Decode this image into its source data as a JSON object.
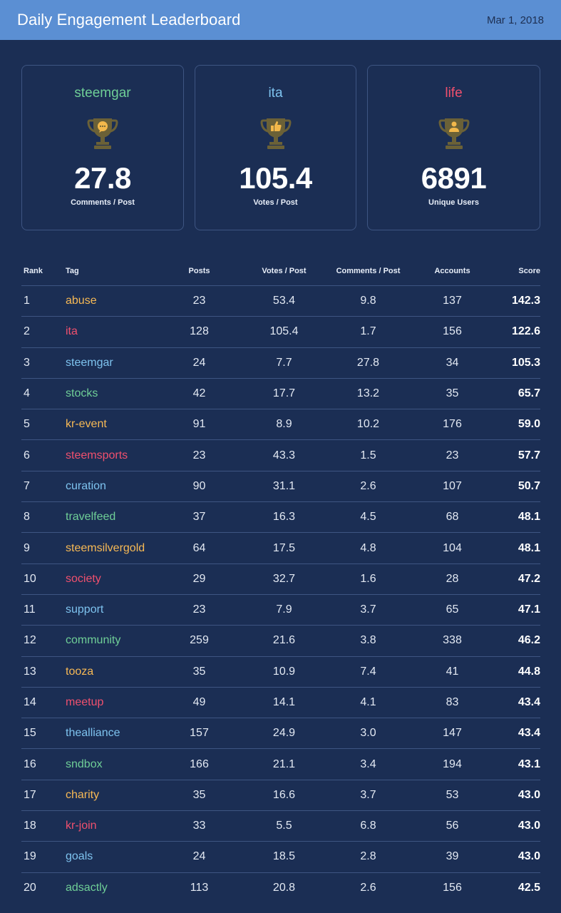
{
  "header": {
    "title": "Daily Engagement Leaderboard",
    "date": "Mar 1, 2018"
  },
  "colors": {
    "orange": "#f7b955",
    "red": "#f0506e",
    "blue": "#7ec3ef",
    "green": "#6fcf97",
    "trophy": "#6b6137",
    "trophy_badge": "#f2b84b"
  },
  "cards": [
    {
      "tag": "steemgar",
      "color": "#6fcf97",
      "icon": "trophy-comment-icon",
      "value": "27.8",
      "label": "Comments / Post"
    },
    {
      "tag": "ita",
      "color": "#7ec3ef",
      "icon": "trophy-thumbs-up-icon",
      "value": "105.4",
      "label": "Votes / Post"
    },
    {
      "tag": "life",
      "color": "#f0506e",
      "icon": "trophy-user-icon",
      "value": "6891",
      "label": "Unique Users"
    }
  ],
  "table": {
    "headers": {
      "rank": "Rank",
      "tag": "Tag",
      "posts": "Posts",
      "votes": "Votes / Post",
      "comments": "Comments / Post",
      "accounts": "Accounts",
      "score": "Score"
    },
    "rows": [
      {
        "rank": "1",
        "tag": "abuse",
        "color": "#f7b955",
        "posts": "23",
        "votes": "53.4",
        "comments": "9.8",
        "accounts": "137",
        "score": "142.3"
      },
      {
        "rank": "2",
        "tag": "ita",
        "color": "#f0506e",
        "posts": "128",
        "votes": "105.4",
        "comments": "1.7",
        "accounts": "156",
        "score": "122.6"
      },
      {
        "rank": "3",
        "tag": "steemgar",
        "color": "#7ec3ef",
        "posts": "24",
        "votes": "7.7",
        "comments": "27.8",
        "accounts": "34",
        "score": "105.3"
      },
      {
        "rank": "4",
        "tag": "stocks",
        "color": "#6fcf97",
        "posts": "42",
        "votes": "17.7",
        "comments": "13.2",
        "accounts": "35",
        "score": "65.7"
      },
      {
        "rank": "5",
        "tag": "kr-event",
        "color": "#f7b955",
        "posts": "91",
        "votes": "8.9",
        "comments": "10.2",
        "accounts": "176",
        "score": "59.0"
      },
      {
        "rank": "6",
        "tag": "steemsports",
        "color": "#f0506e",
        "posts": "23",
        "votes": "43.3",
        "comments": "1.5",
        "accounts": "23",
        "score": "57.7"
      },
      {
        "rank": "7",
        "tag": "curation",
        "color": "#7ec3ef",
        "posts": "90",
        "votes": "31.1",
        "comments": "2.6",
        "accounts": "107",
        "score": "50.7"
      },
      {
        "rank": "8",
        "tag": "travelfeed",
        "color": "#6fcf97",
        "posts": "37",
        "votes": "16.3",
        "comments": "4.5",
        "accounts": "68",
        "score": "48.1"
      },
      {
        "rank": "9",
        "tag": "steemsilvergold",
        "color": "#f7b955",
        "posts": "64",
        "votes": "17.5",
        "comments": "4.8",
        "accounts": "104",
        "score": "48.1"
      },
      {
        "rank": "10",
        "tag": "society",
        "color": "#f0506e",
        "posts": "29",
        "votes": "32.7",
        "comments": "1.6",
        "accounts": "28",
        "score": "47.2"
      },
      {
        "rank": "11",
        "tag": "support",
        "color": "#7ec3ef",
        "posts": "23",
        "votes": "7.9",
        "comments": "3.7",
        "accounts": "65",
        "score": "47.1"
      },
      {
        "rank": "12",
        "tag": "community",
        "color": "#6fcf97",
        "posts": "259",
        "votes": "21.6",
        "comments": "3.8",
        "accounts": "338",
        "score": "46.2"
      },
      {
        "rank": "13",
        "tag": "tooza",
        "color": "#f7b955",
        "posts": "35",
        "votes": "10.9",
        "comments": "7.4",
        "accounts": "41",
        "score": "44.8"
      },
      {
        "rank": "14",
        "tag": "meetup",
        "color": "#f0506e",
        "posts": "49",
        "votes": "14.1",
        "comments": "4.1",
        "accounts": "83",
        "score": "43.4"
      },
      {
        "rank": "15",
        "tag": "thealliance",
        "color": "#7ec3ef",
        "posts": "157",
        "votes": "24.9",
        "comments": "3.0",
        "accounts": "147",
        "score": "43.4"
      },
      {
        "rank": "16",
        "tag": "sndbox",
        "color": "#6fcf97",
        "posts": "166",
        "votes": "21.1",
        "comments": "3.4",
        "accounts": "194",
        "score": "43.1"
      },
      {
        "rank": "17",
        "tag": "charity",
        "color": "#f7b955",
        "posts": "35",
        "votes": "16.6",
        "comments": "3.7",
        "accounts": "53",
        "score": "43.0"
      },
      {
        "rank": "18",
        "tag": "kr-join",
        "color": "#f0506e",
        "posts": "33",
        "votes": "5.5",
        "comments": "6.8",
        "accounts": "56",
        "score": "43.0"
      },
      {
        "rank": "19",
        "tag": "goals",
        "color": "#7ec3ef",
        "posts": "24",
        "votes": "18.5",
        "comments": "2.8",
        "accounts": "39",
        "score": "43.0"
      },
      {
        "rank": "20",
        "tag": "adsactly",
        "color": "#6fcf97",
        "posts": "113",
        "votes": "20.8",
        "comments": "2.6",
        "accounts": "156",
        "score": "42.5"
      }
    ]
  }
}
